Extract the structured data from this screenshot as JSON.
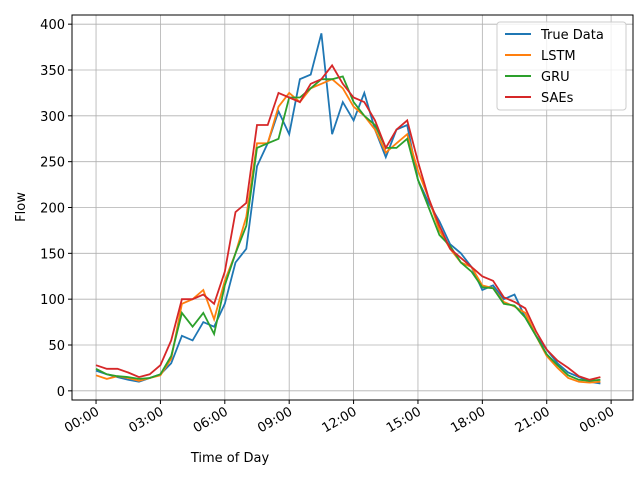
{
  "chart_data": {
    "type": "line",
    "x_label": "Time of Day",
    "y_label": "Flow",
    "x": [
      0,
      0.5,
      1,
      1.5,
      2,
      2.5,
      3,
      3.5,
      4,
      4.5,
      5,
      5.5,
      6,
      6.5,
      7,
      7.5,
      8,
      8.5,
      9,
      9.5,
      10,
      10.5,
      11,
      11.5,
      12,
      12.5,
      13,
      13.5,
      14,
      14.5,
      15,
      15.5,
      16,
      16.5,
      17,
      17.5,
      18,
      18.5,
      19,
      19.5,
      20,
      20.5,
      21,
      21.5,
      22,
      22.5,
      23,
      23.5
    ],
    "series": [
      {
        "name": "True Data",
        "color": "#1f77b4",
        "values": [
          22,
          18,
          15,
          12,
          10,
          14,
          18,
          30,
          60,
          55,
          75,
          70,
          95,
          140,
          155,
          245,
          270,
          305,
          280,
          340,
          345,
          390,
          280,
          315,
          295,
          325,
          285,
          255,
          285,
          290,
          230,
          205,
          185,
          160,
          150,
          135,
          110,
          115,
          100,
          105,
          80,
          60,
          45,
          30,
          20,
          15,
          10,
          8
        ]
      },
      {
        "name": "LSTM",
        "color": "#ff7f0e",
        "values": [
          17,
          13,
          16,
          14,
          11,
          14,
          17,
          35,
          95,
          100,
          110,
          78,
          120,
          150,
          190,
          270,
          270,
          310,
          325,
          315,
          330,
          335,
          340,
          330,
          310,
          300,
          285,
          260,
          270,
          280,
          240,
          210,
          175,
          155,
          140,
          135,
          115,
          112,
          97,
          92,
          85,
          60,
          38,
          25,
          14,
          10,
          9,
          10
        ]
      },
      {
        "name": "GRU",
        "color": "#2ca02c",
        "values": [
          24,
          18,
          16,
          15,
          13,
          14,
          18,
          38,
          85,
          70,
          85,
          62,
          115,
          150,
          180,
          265,
          270,
          275,
          320,
          320,
          330,
          340,
          340,
          343,
          315,
          300,
          290,
          265,
          265,
          275,
          230,
          200,
          170,
          158,
          140,
          130,
          113,
          112,
          95,
          93,
          80,
          60,
          40,
          28,
          17,
          12,
          11,
          12
        ]
      },
      {
        "name": "SAEs",
        "color": "#d62728",
        "values": [
          28,
          24,
          24,
          20,
          15,
          18,
          28,
          55,
          100,
          100,
          105,
          95,
          130,
          195,
          205,
          290,
          290,
          325,
          320,
          315,
          335,
          340,
          355,
          335,
          320,
          315,
          295,
          265,
          285,
          295,
          250,
          210,
          180,
          155,
          145,
          135,
          125,
          120,
          102,
          97,
          90,
          65,
          45,
          33,
          25,
          16,
          12,
          15
        ]
      }
    ],
    "xlim": [
      -1.12,
      25.02
    ],
    "xticks": [
      {
        "value": 0,
        "label": "00:00"
      },
      {
        "value": 3,
        "label": "03:00"
      },
      {
        "value": 6,
        "label": "06:00"
      },
      {
        "value": 9,
        "label": "09:00"
      },
      {
        "value": 12,
        "label": "12:00"
      },
      {
        "value": 15,
        "label": "15:00"
      },
      {
        "value": 18,
        "label": "18:00"
      },
      {
        "value": 21,
        "label": "21:00"
      },
      {
        "value": 24,
        "label": "00:00"
      }
    ],
    "ylim": [
      -10,
      410
    ],
    "yticks": [
      0,
      50,
      100,
      150,
      200,
      250,
      300,
      350,
      400
    ],
    "grid": true,
    "legend": "upper-right"
  }
}
